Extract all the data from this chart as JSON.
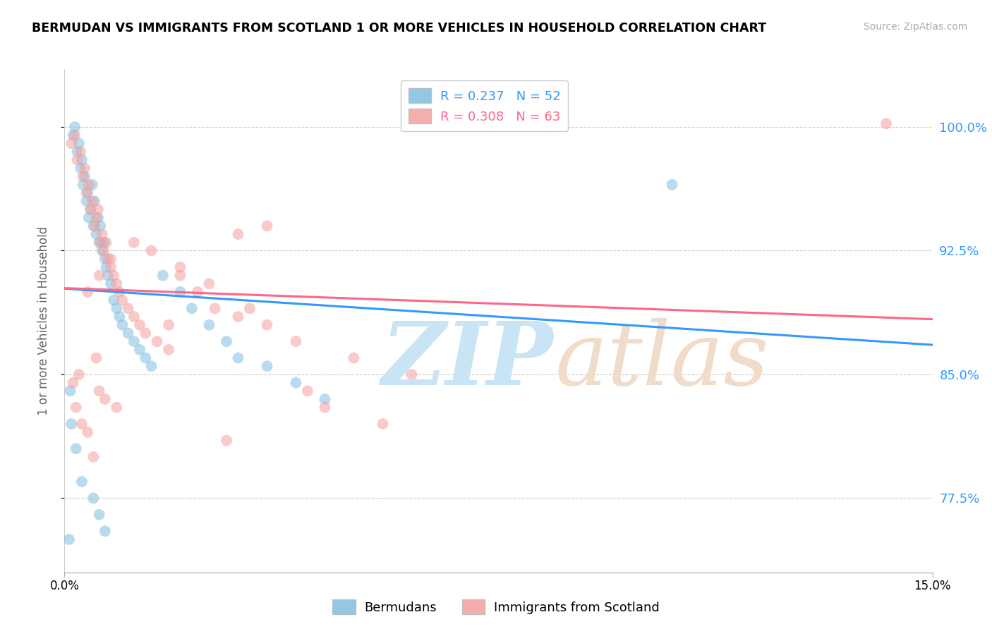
{
  "title": "BERMUDAN VS IMMIGRANTS FROM SCOTLAND 1 OR MORE VEHICLES IN HOUSEHOLD CORRELATION CHART",
  "source": "Source: ZipAtlas.com",
  "ylabel_label": "1 or more Vehicles in Household",
  "legend_blue_label": "R = 0.237   N = 52",
  "legend_pink_label": "R = 0.308   N = 63",
  "legend_blue_label2": "Bermudans",
  "legend_pink_label2": "Immigrants from Scotland",
  "xmin": 0.0,
  "xmax": 15.0,
  "ymin": 73.0,
  "ymax": 103.5,
  "ytick_vals": [
    77.5,
    85.0,
    92.5,
    100.0
  ],
  "ytick_labels": [
    "77.5%",
    "85.0%",
    "92.5%",
    "100.0%"
  ],
  "xtick_vals": [
    0.0,
    15.0
  ],
  "xtick_labels": [
    "0.0%",
    "15.0%"
  ],
  "blue_color": "#7fbfdf",
  "pink_color": "#f4a0a0",
  "blue_line_color": "#3399ff",
  "pink_line_color": "#ff6688",
  "ytick_color": "#3399ff",
  "grid_color": "#cccccc",
  "scatter_size": 130,
  "scatter_alpha": 0.55,
  "line_width": 2.2,
  "blue_x": [
    0.15,
    0.18,
    0.22,
    0.25,
    0.28,
    0.3,
    0.32,
    0.35,
    0.38,
    0.4,
    0.42,
    0.45,
    0.48,
    0.5,
    0.52,
    0.55,
    0.58,
    0.6,
    0.62,
    0.65,
    0.68,
    0.7,
    0.72,
    0.75,
    0.8,
    0.85,
    0.9,
    0.95,
    1.0,
    1.1,
    1.2,
    1.3,
    1.4,
    1.5,
    1.7,
    2.0,
    2.2,
    2.5,
    2.8,
    3.0,
    3.5,
    4.0,
    4.5,
    0.1,
    0.12,
    0.2,
    0.3,
    0.5,
    0.6,
    0.7,
    10.5,
    0.08
  ],
  "blue_y": [
    99.5,
    100.0,
    98.5,
    99.0,
    97.5,
    98.0,
    96.5,
    97.0,
    95.5,
    96.0,
    94.5,
    95.0,
    96.5,
    94.0,
    95.5,
    93.5,
    94.5,
    93.0,
    94.0,
    92.5,
    93.0,
    92.0,
    91.5,
    91.0,
    90.5,
    89.5,
    89.0,
    88.5,
    88.0,
    87.5,
    87.0,
    86.5,
    86.0,
    85.5,
    91.0,
    90.0,
    89.0,
    88.0,
    87.0,
    86.0,
    85.5,
    84.5,
    83.5,
    84.0,
    82.0,
    80.5,
    78.5,
    77.5,
    76.5,
    75.5,
    96.5,
    75.0
  ],
  "pink_x": [
    0.12,
    0.18,
    0.22,
    0.28,
    0.32,
    0.35,
    0.38,
    0.42,
    0.45,
    0.48,
    0.52,
    0.55,
    0.58,
    0.62,
    0.65,
    0.68,
    0.72,
    0.75,
    0.8,
    0.85,
    0.9,
    0.95,
    1.0,
    1.1,
    1.2,
    1.3,
    1.4,
    1.6,
    1.8,
    2.0,
    2.3,
    2.6,
    3.0,
    3.5,
    4.0,
    5.0,
    6.0,
    0.2,
    0.3,
    0.4,
    0.5,
    0.6,
    0.7,
    0.15,
    0.25,
    0.55,
    1.5,
    2.0,
    2.5,
    3.0,
    3.5,
    4.5,
    5.5,
    2.8,
    1.2,
    0.8,
    0.6,
    0.4,
    3.2,
    1.8,
    4.2,
    0.9,
    14.2
  ],
  "pink_y": [
    99.0,
    99.5,
    98.0,
    98.5,
    97.0,
    97.5,
    96.0,
    96.5,
    95.0,
    95.5,
    94.0,
    94.5,
    95.0,
    93.0,
    93.5,
    92.5,
    93.0,
    92.0,
    91.5,
    91.0,
    90.5,
    90.0,
    89.5,
    89.0,
    88.5,
    88.0,
    87.5,
    87.0,
    86.5,
    91.0,
    90.0,
    89.0,
    88.5,
    88.0,
    87.0,
    86.0,
    85.0,
    83.0,
    82.0,
    81.5,
    80.0,
    84.0,
    83.5,
    84.5,
    85.0,
    86.0,
    92.5,
    91.5,
    90.5,
    93.5,
    94.0,
    83.0,
    82.0,
    81.0,
    93.0,
    92.0,
    91.0,
    90.0,
    89.0,
    88.0,
    84.0,
    83.0,
    100.2
  ]
}
